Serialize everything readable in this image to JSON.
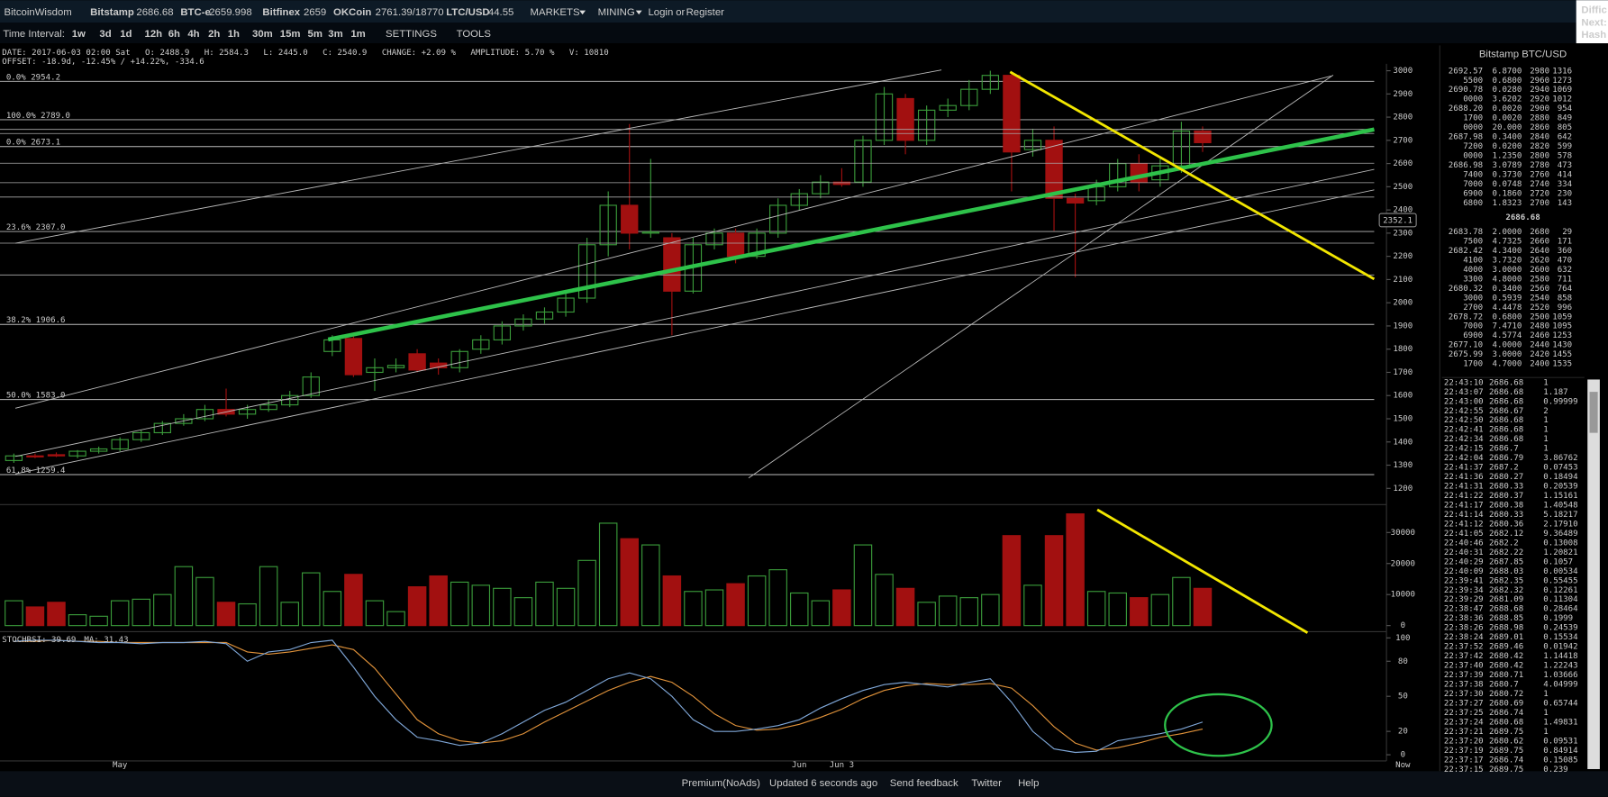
{
  "header": {
    "brand": "BitcoinWisdom",
    "tickers": [
      {
        "name": "Bitstamp",
        "price": "2686.68"
      },
      {
        "name": "BTC-e",
        "price": "2659.998"
      },
      {
        "name": "Bitfinex",
        "price": "2659"
      },
      {
        "name": "OKCoin",
        "price": "2761.39/18770"
      },
      {
        "name": "LTC/USD",
        "price": "44.55"
      }
    ],
    "menus": [
      "MARKETS",
      "MINING"
    ],
    "login": "Login",
    "or": "or",
    "register": "Register",
    "right": [
      "Diffic",
      "Next:",
      "Hash"
    ]
  },
  "toolbar": {
    "label": "Time Interval:",
    "intervals": [
      "1w",
      "3d",
      "1d",
      "12h",
      "6h",
      "4h",
      "2h",
      "1h",
      "30m",
      "15m",
      "5m",
      "3m",
      "1m"
    ],
    "settings": "SETTINGS",
    "tools": "TOOLS"
  },
  "info": {
    "line1": "DATE: 2017-06-03 02:00 Sat   O: 2488.9   H: 2584.3   L: 2445.0   C: 2540.9   CHANGE: +2.09 %   AMPLITUDE: 5.70 %   V: 10810",
    "line2": "OFFSET: -18.9d, -12.45% / +14.22%, -334.6"
  },
  "chart_data": {
    "type": "candlestick",
    "categories": [
      null,
      null,
      null,
      null,
      null,
      "May",
      null,
      null,
      null,
      null,
      null,
      null,
      null,
      null,
      null,
      null,
      null,
      null,
      null,
      null,
      null,
      null,
      null,
      null,
      null,
      null,
      null,
      null,
      null,
      null,
      null,
      null,
      null,
      null,
      null,
      null,
      null,
      "Jun",
      null,
      "Jun 3",
      null,
      null,
      null,
      null,
      null,
      null,
      null,
      null,
      null,
      null,
      null,
      null,
      null,
      null,
      null,
      null,
      null
    ],
    "x_end_label": "Now",
    "open": [
      1320,
      1340,
      1345,
      1340,
      1360,
      1370,
      1410,
      1440,
      1480,
      1500,
      1540,
      1520,
      1540,
      1560,
      1600,
      1790,
      1846,
      1700,
      1720,
      1780,
      1740,
      1720,
      1800,
      1840,
      1900,
      1930,
      1960,
      2020,
      2250,
      2420,
      2300,
      2280,
      2050,
      2250,
      2300,
      2200,
      2300,
      2420,
      2470,
      2520,
      2520,
      2700,
      2880,
      2700,
      2830,
      2850,
      2920,
      2980,
      2660,
      2700,
      2450,
      2440,
      2500,
      2600,
      2530,
      2590,
      2740
    ],
    "close": [
      1340,
      1338,
      1340,
      1360,
      1370,
      1410,
      1440,
      1480,
      1500,
      1540,
      1520,
      1540,
      1560,
      1600,
      1680,
      1840,
      1690,
      1720,
      1730,
      1710,
      1720,
      1790,
      1840,
      1900,
      1930,
      1960,
      2020,
      2250,
      2420,
      2300,
      2305,
      2050,
      2250,
      2300,
      2200,
      2300,
      2420,
      2470,
      2520,
      2510,
      2700,
      2900,
      2700,
      2830,
      2850,
      2920,
      2980,
      2650,
      2700,
      2450,
      2430,
      2500,
      2600,
      2520,
      2590,
      2740,
      2690
    ],
    "high": [
      1350,
      1350,
      1355,
      1365,
      1380,
      1420,
      1450,
      1490,
      1520,
      1560,
      1630,
      1560,
      1580,
      1620,
      1700,
      1860,
      1860,
      1760,
      1760,
      1800,
      1760,
      1800,
      1860,
      1920,
      1950,
      1980,
      2050,
      2280,
      2480,
      2770,
      2620,
      2300,
      2280,
      2320,
      2320,
      2320,
      2450,
      2490,
      2550,
      2580,
      2720,
      2930,
      2900,
      2850,
      2880,
      2960,
      3000,
      2990,
      2750,
      2760,
      2470,
      2530,
      2620,
      2640,
      2620,
      2780,
      2760
    ],
    "low": [
      1310,
      1330,
      1335,
      1330,
      1350,
      1360,
      1400,
      1430,
      1470,
      1490,
      1510,
      1500,
      1530,
      1550,
      1590,
      1770,
      1680,
      1620,
      1700,
      1700,
      1690,
      1700,
      1780,
      1820,
      1880,
      1910,
      1940,
      2000,
      2200,
      2230,
      2280,
      1860,
      2040,
      2230,
      2170,
      2190,
      2280,
      2400,
      2450,
      2500,
      2500,
      2680,
      2640,
      2680,
      2800,
      2830,
      2900,
      2480,
      2630,
      2310,
      2110,
      2420,
      2480,
      2480,
      2500,
      2560,
      2650
    ],
    "ylim": [
      1130,
      3030
    ],
    "yticks": [
      1200,
      1300,
      1400,
      1500,
      1600,
      1700,
      1800,
      1900,
      2000,
      2100,
      2200,
      2300,
      2400,
      2500,
      2600,
      2700,
      2800,
      2900,
      3000
    ],
    "up_color": "#3a9a3a",
    "down_color": "#a21010",
    "cursor_value": "2352.1",
    "fib_levels": [
      {
        "label": "0.0% 2954.2",
        "value": 2954.2
      },
      {
        "label": "100.0% 2789.0",
        "value": 2789.0
      },
      {
        "label": "0.0% 2673.1",
        "value": 2673.1
      },
      {
        "label": "23.6% 2307.0",
        "value": 2307.0
      },
      {
        "label": "38.2% 1906.6",
        "value": 1906.6
      },
      {
        "label": "50.0% 1583.0",
        "value": 1583.0
      },
      {
        "label": "61.8% 1259.4",
        "value": 1259.4
      }
    ],
    "volume": {
      "values": [
        8000,
        6000,
        7500,
        3500,
        3000,
        8000,
        8500,
        10000,
        19000,
        15500,
        7500,
        7000,
        19000,
        7500,
        17000,
        11000,
        16500,
        8000,
        4500,
        12500,
        16000,
        14000,
        13000,
        12000,
        9000,
        14000,
        12000,
        21000,
        33000,
        28000,
        26000,
        16000,
        11000,
        11500,
        13500,
        16000,
        18000,
        10500,
        8000,
        11500,
        26000,
        16500,
        12000,
        7500,
        9500,
        9000,
        10000,
        29000,
        13000,
        29000,
        36000,
        11000,
        10500,
        9000,
        10000,
        15500,
        12000
      ],
      "ylim": [
        0,
        38000
      ],
      "yticks": [
        0,
        10000,
        20000,
        30000
      ]
    },
    "stochrsi": {
      "label": "STOCHRSI: 39.69",
      "ma_label": "MA: 31.43",
      "ylim": [
        0,
        100
      ],
      "yticks": [
        0,
        20,
        50,
        80,
        100
      ],
      "k": [
        97,
        98,
        98,
        97,
        96,
        96,
        95,
        96,
        96,
        97,
        95,
        80,
        88,
        90,
        96,
        98,
        75,
        50,
        30,
        15,
        12,
        8,
        10,
        18,
        28,
        38,
        45,
        55,
        65,
        70,
        65,
        50,
        30,
        20,
        20,
        22,
        25,
        30,
        40,
        48,
        55,
        60,
        62,
        60,
        58,
        62,
        65,
        45,
        20,
        5,
        2,
        3,
        12,
        15,
        18,
        22,
        28
      ],
      "d": [
        97,
        97,
        98,
        97,
        97,
        96,
        96,
        96,
        96,
        96,
        96,
        88,
        86,
        88,
        91,
        94,
        90,
        74,
        52,
        30,
        18,
        12,
        10,
        12,
        18,
        28,
        37,
        46,
        55,
        62,
        67,
        62,
        50,
        35,
        25,
        21,
        22,
        26,
        32,
        39,
        48,
        55,
        59,
        61,
        60,
        60,
        61,
        57,
        42,
        24,
        10,
        4,
        6,
        10,
        15,
        18,
        22
      ],
      "k_color": "#7fa7d8",
      "d_color": "#e0923a"
    }
  },
  "order_book": {
    "title": "Bitstamp BTC/USD",
    "last": "2686.68",
    "asks": [
      [
        "2692.57",
        "6.8700",
        "2980",
        "1316"
      ],
      [
        "5500",
        "0.6800",
        "2960",
        "1273"
      ],
      [
        "2690.78",
        "0.0280",
        "2940",
        "1069"
      ],
      [
        "0000",
        "3.6202",
        "2920",
        "1012"
      ],
      [
        "2688.20",
        "0.0020",
        "2900",
        "954"
      ],
      [
        "1700",
        "0.0020",
        "2880",
        "849"
      ],
      [
        "0000",
        "20.000",
        "2860",
        "805"
      ],
      [
        "2687.98",
        "0.3400",
        "2840",
        "642"
      ],
      [
        "7200",
        "0.0200",
        "2820",
        "599"
      ],
      [
        "0000",
        "1.2350",
        "2800",
        "578"
      ],
      [
        "2686.98",
        "3.0789",
        "2780",
        "473"
      ],
      [
        "7400",
        "0.3730",
        "2760",
        "414"
      ],
      [
        "7000",
        "0.0748",
        "2740",
        "334"
      ],
      [
        "6900",
        "0.1860",
        "2720",
        "230"
      ],
      [
        "6800",
        "1.8323",
        "2700",
        "143"
      ]
    ],
    "bids": [
      [
        "2683.78",
        "2.0000",
        "2680",
        "29"
      ],
      [
        "7500",
        "4.7325",
        "2660",
        "171"
      ],
      [
        "2682.42",
        "4.3400",
        "2640",
        "360"
      ],
      [
        "4100",
        "3.7320",
        "2620",
        "470"
      ],
      [
        "4000",
        "3.0000",
        "2600",
        "632"
      ],
      [
        "3300",
        "4.8000",
        "2580",
        "711"
      ],
      [
        "2680.32",
        "0.3400",
        "2560",
        "764"
      ],
      [
        "3000",
        "0.5939",
        "2540",
        "858"
      ],
      [
        "2700",
        "4.4478",
        "2520",
        "996"
      ],
      [
        "2678.72",
        "0.6800",
        "2500",
        "1059"
      ],
      [
        "7000",
        "7.4710",
        "2480",
        "1095"
      ],
      [
        "6900",
        "4.5774",
        "2460",
        "1253"
      ],
      [
        "2677.10",
        "4.0000",
        "2440",
        "1430"
      ],
      [
        "2675.99",
        "3.0000",
        "2420",
        "1455"
      ],
      [
        "1700",
        "4.7000",
        "2400",
        "1535"
      ]
    ]
  },
  "trades": [
    [
      "22:43:10",
      "2686.68",
      "1",
      "#5c5"
    ],
    [
      "22:43:07",
      "2686.68",
      "1.187",
      "#5c5"
    ],
    [
      "22:43:00",
      "2686.68",
      "0.99999",
      "#5c5"
    ],
    [
      "22:42:55",
      "2686.67",
      "2",
      "#5c5"
    ],
    [
      "22:42:50",
      "2686.68",
      "1",
      "#5c5"
    ],
    [
      "22:42:41",
      "2686.68",
      "1",
      "#5c5"
    ],
    [
      "22:42:34",
      "2686.68",
      "1",
      "#5c5"
    ],
    [
      "22:42:15",
      "2686.7",
      "1",
      "#5c5"
    ],
    [
      "22:42:04",
      "2686.79",
      "3.86762",
      "#5c5"
    ],
    [
      "22:41:37",
      "2687.2",
      "0.07453",
      "#5c5"
    ],
    [
      "22:41:36",
      "2680.27",
      "0.18494",
      "#d44"
    ],
    [
      "22:41:31",
      "2680.33",
      "0.20539",
      "#d44"
    ],
    [
      "22:41:22",
      "2680.37",
      "1.15161",
      "#d44"
    ],
    [
      "22:41:17",
      "2680.38",
      "1.40548",
      "#d44"
    ],
    [
      "22:41:14",
      "2680.33",
      "5.18217",
      "#d44"
    ],
    [
      "22:41:12",
      "2680.36",
      "2.17910",
      "#d44"
    ],
    [
      "22:41:05",
      "2682.12",
      "9.36489",
      "#d44"
    ],
    [
      "22:40:46",
      "2682.2",
      "0.13008",
      "#d44"
    ],
    [
      "22:40:31",
      "2682.22",
      "1.20821",
      "#d44"
    ],
    [
      "22:40:29",
      "2687.85",
      "0.1057",
      "#5c5"
    ],
    [
      "22:40:09",
      "2688.03",
      "0.00534",
      "#5c5"
    ],
    [
      "22:39:41",
      "2682.35",
      "0.55455",
      "#d44"
    ],
    [
      "22:39:34",
      "2682.32",
      "0.12261",
      "#d44"
    ],
    [
      "22:39:29",
      "2681.09",
      "0.11304",
      "#d44"
    ],
    [
      "22:38:47",
      "2688.68",
      "0.28464",
      "#5c5"
    ],
    [
      "22:38:36",
      "2688.85",
      "0.1999",
      "#5c5"
    ],
    [
      "22:38:26",
      "2688.98",
      "0.24539",
      "#5c5"
    ],
    [
      "22:38:24",
      "2689.01",
      "0.15534",
      "#5c5"
    ],
    [
      "22:37:52",
      "2689.46",
      "0.01942",
      "#5c5"
    ],
    [
      "22:37:42",
      "2680.42",
      "1.14418",
      "#d44"
    ],
    [
      "22:37:40",
      "2680.42",
      "1.22243",
      "#d44"
    ],
    [
      "22:37:39",
      "2680.71",
      "1.03666",
      "#d44"
    ],
    [
      "22:37:38",
      "2680.7",
      "4.04999",
      "#d44"
    ],
    [
      "22:37:30",
      "2680.72",
      "1",
      "#d44"
    ],
    [
      "22:37:27",
      "2680.69",
      "0.65744",
      "#d44"
    ],
    [
      "22:37:25",
      "2686.74",
      "1",
      "#5c5"
    ],
    [
      "22:37:24",
      "2680.68",
      "1.49831",
      "#d44"
    ],
    [
      "22:37:21",
      "2689.75",
      "1",
      "#5c5"
    ],
    [
      "22:37:20",
      "2680.62",
      "0.09531",
      "#d44"
    ],
    [
      "22:37:19",
      "2689.75",
      "0.84914",
      "#5c5"
    ],
    [
      "22:37:17",
      "2686.74",
      "0.15085",
      "#d44"
    ],
    [
      "22:37:15",
      "2689.75",
      "0.239",
      "#5c5"
    ]
  ],
  "footer": [
    "Premium(NoAds)",
    "Updated 6 seconds ago",
    "Send feedback",
    "Twitter",
    "Help"
  ]
}
